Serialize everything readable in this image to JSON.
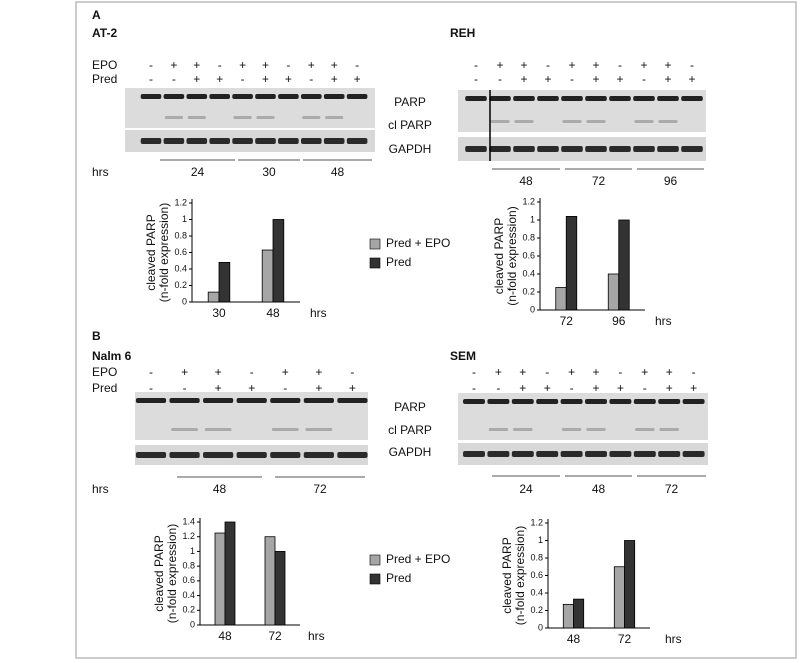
{
  "figure": {
    "panels": [
      {
        "letter": "A",
        "band_labels": [
          "PARP",
          "cl PARP",
          "GAPDH"
        ],
        "blots": [
          {
            "title": "AT-2",
            "rows": [
              {
                "label": "EPO",
                "signs": [
                  "-",
                  "+",
                  "+",
                  "-",
                  "+",
                  "+",
                  "-",
                  "+",
                  "+",
                  "-"
                ]
              },
              {
                "label": "Pred",
                "signs": [
                  "-",
                  "-",
                  "+",
                  "+",
                  "-",
                  "+",
                  "+",
                  "-",
                  "+",
                  "+"
                ]
              }
            ],
            "time_label": "hrs",
            "times": [
              24,
              30,
              48
            ]
          },
          {
            "title": "REH",
            "rows": [
              {
                "signs": [
                  "-",
                  "+",
                  "+",
                  "-",
                  "+",
                  "+",
                  "-",
                  "+",
                  "+",
                  "-"
                ]
              },
              {
                "signs": [
                  "-",
                  "-",
                  "+",
                  "+",
                  "-",
                  "+",
                  "+",
                  "-",
                  "+",
                  "+"
                ]
              }
            ],
            "times": [
              48,
              72,
              96
            ]
          }
        ]
      },
      {
        "letter": "B",
        "band_labels": [
          "PARP",
          "cl PARP",
          "GAPDH"
        ],
        "blots": [
          {
            "title": "Nalm 6",
            "rows": [
              {
                "label": "EPO",
                "signs": [
                  "-",
                  "+",
                  "+",
                  "-",
                  "+",
                  "+",
                  "-"
                ]
              },
              {
                "label": "Pred",
                "signs": [
                  "-",
                  "-",
                  "+",
                  "+",
                  "-",
                  "+",
                  "+"
                ]
              }
            ],
            "time_label": "hrs",
            "times": [
              48,
              72
            ]
          },
          {
            "title": "SEM",
            "rows": [
              {
                "signs": [
                  "-",
                  "+",
                  "+",
                  "-",
                  "+",
                  "+",
                  "-",
                  "+",
                  "+",
                  "-"
                ]
              },
              {
                "signs": [
                  "-",
                  "-",
                  "+",
                  "+",
                  "-",
                  "+",
                  "+",
                  "-",
                  "+",
                  "+"
                ]
              }
            ],
            "times": [
              24,
              48,
              72
            ]
          }
        ]
      }
    ]
  },
  "chart_data": [
    {
      "type": "bar",
      "ylabel": [
        "cleaved PARP",
        "(n-fold expression)"
      ],
      "xlabel": "hrs",
      "categories": [
        30,
        48
      ],
      "series": [
        {
          "name": "Pred + EPO",
          "color": "#a6a6a6",
          "values": [
            0.12,
            0.63
          ]
        },
        {
          "name": "Pred",
          "color": "#333333",
          "values": [
            0.48,
            1.0
          ]
        }
      ],
      "ylim": [
        0,
        1.2
      ],
      "yticks": [
        0,
        0.2,
        0.4,
        0.6,
        0.8,
        1,
        1.2
      ],
      "legend": "right"
    },
    {
      "type": "bar",
      "ylabel": [
        "cleaved PARP",
        "(n-fold expression)"
      ],
      "xlabel": "hrs",
      "categories": [
        72,
        96
      ],
      "series": [
        {
          "color": "#a6a6a6",
          "values": [
            0.25,
            0.4
          ]
        },
        {
          "color": "#333333",
          "values": [
            1.04,
            1.0
          ]
        }
      ],
      "ylim": [
        0,
        1.2
      ],
      "yticks": [
        0,
        0.2,
        0.4,
        0.6,
        0.8,
        1,
        1.2
      ]
    },
    {
      "type": "bar",
      "ylabel": [
        "cleaved PARP",
        "(n-fold expression)"
      ],
      "xlabel": "hrs",
      "categories": [
        48,
        72
      ],
      "series": [
        {
          "name": "Pred + EPO",
          "color": "#a6a6a6",
          "values": [
            1.25,
            1.2
          ]
        },
        {
          "name": "Pred",
          "color": "#333333",
          "values": [
            1.4,
            1.0
          ]
        }
      ],
      "ylim": [
        0,
        1.4
      ],
      "yticks": [
        0,
        0.2,
        0.4,
        0.6,
        0.8,
        1,
        1.2,
        1.4
      ],
      "legend": "right"
    },
    {
      "type": "bar",
      "ylabel": [
        "cleaved PARP",
        "(n-fold expression)"
      ],
      "xlabel": "hrs",
      "categories": [
        48,
        72
      ],
      "series": [
        {
          "color": "#a6a6a6",
          "values": [
            0.27,
            0.7
          ]
        },
        {
          "color": "#333333",
          "values": [
            0.33,
            1.0
          ]
        }
      ],
      "ylim": [
        0,
        1.2
      ],
      "yticks": [
        0,
        0.2,
        0.4,
        0.6,
        0.8,
        1,
        1.2
      ]
    }
  ]
}
